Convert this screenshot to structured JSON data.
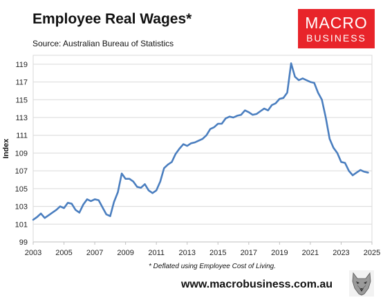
{
  "header": {
    "title": "Employee Real Wages*",
    "source": "Source: Australian Bureau of Statistics"
  },
  "logo": {
    "line1": "MACRO",
    "line2": "BUSINESS"
  },
  "footnote": "* Deflated using Employee Cost of Living.",
  "website": "www.macrobusiness.com.au",
  "mascot_icon": "wolf-head-icon",
  "colors": {
    "line": "#4a7ebf",
    "grid": "#d9d9d9",
    "logo_bg": "#e8242a"
  },
  "chart_data": {
    "type": "line",
    "title": "Employee Real Wages*",
    "xlabel": "",
    "ylabel": "Index",
    "xlim": [
      2003,
      2025
    ],
    "ylim": [
      99,
      120
    ],
    "x_ticks": [
      2003,
      2005,
      2007,
      2009,
      2011,
      2013,
      2015,
      2017,
      2019,
      2021,
      2023,
      2025
    ],
    "y_ticks": [
      99,
      101,
      103,
      105,
      107,
      109,
      111,
      113,
      115,
      117,
      119
    ],
    "grid": "horizontal",
    "legend": "none",
    "series": [
      {
        "x": [
          2003.0,
          2003.25,
          2003.5,
          2003.75,
          2004.0,
          2004.25,
          2004.5,
          2004.75,
          2005.0,
          2005.25,
          2005.5,
          2005.75,
          2006.0,
          2006.25,
          2006.5,
          2006.75,
          2007.0,
          2007.25,
          2007.5,
          2007.75,
          2008.0,
          2008.25,
          2008.5,
          2008.75,
          2009.0,
          2009.25,
          2009.5,
          2009.75,
          2010.0,
          2010.25,
          2010.5,
          2010.75,
          2011.0,
          2011.25,
          2011.5,
          2011.75,
          2012.0,
          2012.25,
          2012.5,
          2012.75,
          2013.0,
          2013.25,
          2013.5,
          2013.75,
          2014.0,
          2014.25,
          2014.5,
          2014.75,
          2015.0,
          2015.25,
          2015.5,
          2015.75,
          2016.0,
          2016.25,
          2016.5,
          2016.75,
          2017.0,
          2017.25,
          2017.5,
          2017.75,
          2018.0,
          2018.25,
          2018.5,
          2018.75,
          2019.0,
          2019.25,
          2019.5,
          2019.75,
          2020.0,
          2020.25,
          2020.5,
          2020.75,
          2021.0,
          2021.25,
          2021.5,
          2021.75,
          2022.0,
          2022.25,
          2022.5,
          2022.75,
          2023.0,
          2023.25,
          2023.5,
          2023.75,
          2024.0,
          2024.25,
          2024.5,
          2024.75
        ],
        "values": [
          101.5,
          101.8,
          102.2,
          101.7,
          102.0,
          102.3,
          102.6,
          103.0,
          102.8,
          103.4,
          103.3,
          102.6,
          102.3,
          103.2,
          103.8,
          103.6,
          103.8,
          103.7,
          102.9,
          102.1,
          101.9,
          103.5,
          104.6,
          106.7,
          106.1,
          106.1,
          105.8,
          105.2,
          105.1,
          105.5,
          104.8,
          104.5,
          104.8,
          105.8,
          107.3,
          107.7,
          108.0,
          108.9,
          109.5,
          110.0,
          109.8,
          110.1,
          110.2,
          110.4,
          110.6,
          111.0,
          111.7,
          111.9,
          112.3,
          112.3,
          112.9,
          113.1,
          113.0,
          113.2,
          113.3,
          113.8,
          113.6,
          113.3,
          113.4,
          113.7,
          114.0,
          113.8,
          114.4,
          114.6,
          115.1,
          115.2,
          115.8,
          119.1,
          117.6,
          117.2,
          117.4,
          117.2,
          117.0,
          116.9,
          115.8,
          115.0,
          113.0,
          110.6,
          109.6,
          109.0,
          108.0,
          107.9,
          107.0,
          106.5,
          106.8,
          107.1,
          106.9,
          106.8
        ]
      }
    ]
  }
}
